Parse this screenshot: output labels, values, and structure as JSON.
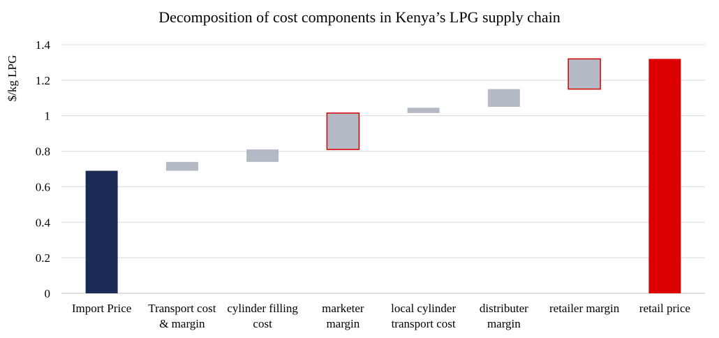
{
  "chart_data": {
    "type": "bar",
    "subtype": "waterfall",
    "title": "Decomposition of cost components in Kenya’s LPG supply chain",
    "xlabel": "",
    "ylabel": "$/kg LPG",
    "ylim": [
      0,
      1.4
    ],
    "yticks": [
      "0",
      "0.2",
      "0.4",
      "0.6",
      "0.8",
      "1",
      "1.2",
      "1.4"
    ],
    "grid": true,
    "categories": [
      [
        "Import Price"
      ],
      [
        "Transport cost",
        "& margin"
      ],
      [
        "cylinder filling",
        "cost"
      ],
      [
        "marketer",
        "margin"
      ],
      [
        "local cylinder",
        "transport cost"
      ],
      [
        "distributer",
        "margin"
      ],
      [
        "retailer margin"
      ],
      [
        "retail price"
      ]
    ],
    "bars": [
      {
        "base": 0,
        "top": 0.69,
        "kind": "total"
      },
      {
        "base": 0.69,
        "top": 0.74,
        "kind": "component"
      },
      {
        "base": 0.74,
        "top": 0.81,
        "kind": "component"
      },
      {
        "base": 0.81,
        "top": 1.015,
        "kind": "component-highlight"
      },
      {
        "base": 1.015,
        "top": 1.045,
        "kind": "component"
      },
      {
        "base": 1.05,
        "top": 1.15,
        "kind": "component"
      },
      {
        "base": 1.15,
        "top": 1.32,
        "kind": "component-highlight"
      },
      {
        "base": 0,
        "top": 1.32,
        "kind": "total-highlight"
      }
    ],
    "colors": {
      "total": "#1b2a55",
      "component": "#b3bac6",
      "highlight_border": "#d40000",
      "total_highlight": "#dd0000",
      "grid": "#d9d9d9",
      "axis": "#bfbfbf"
    }
  }
}
